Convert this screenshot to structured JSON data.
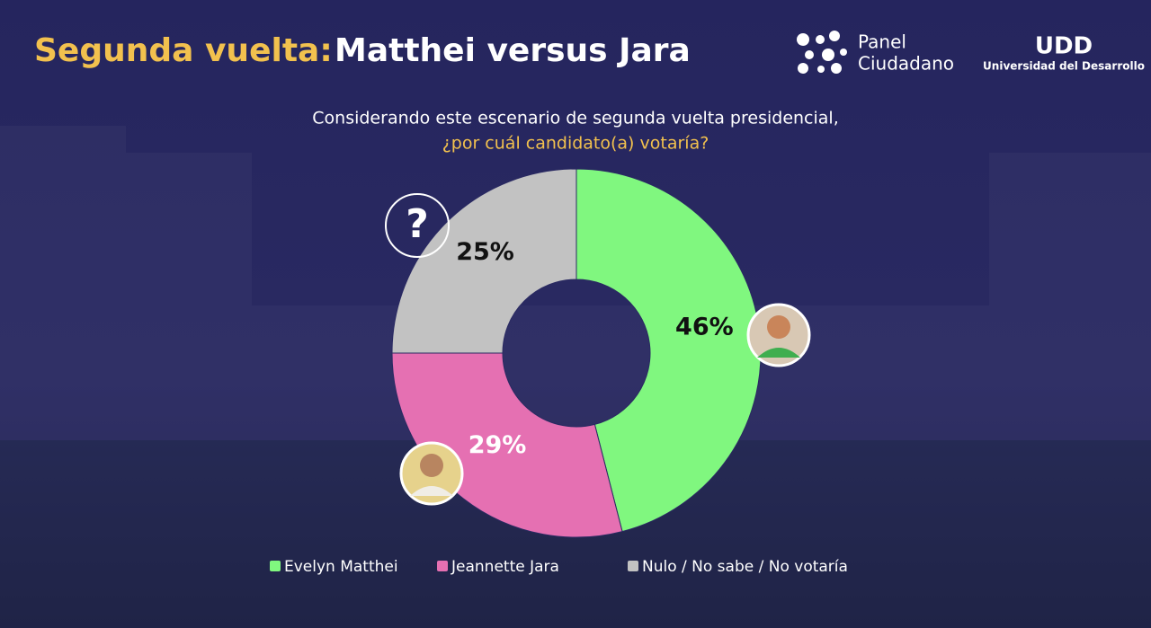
{
  "chart_data": {
    "type": "donut",
    "title_prefix": "Segunda vuelta:",
    "title": "Matthei versus Jara",
    "subtitle": [
      "Considerando este escenario de segunda vuelta presidencial,",
      "¿por cuál candidato(a) votaría?"
    ],
    "categories": [
      "Evelyn Matthei",
      "Jeannette Jara",
      "Nulo / No sabe / No votaría"
    ],
    "values": [
      46,
      29,
      25
    ],
    "value_labels": [
      "46%",
      "29%",
      "25%"
    ],
    "colors": [
      "#80f77f",
      "#e570b2",
      "#c2c2c2"
    ],
    "label_colors": [
      "#111111",
      "#ffffff",
      "#111111"
    ]
  },
  "logos": {
    "panel": [
      "Panel",
      "Ciudadano"
    ],
    "udd_mark": "UDD",
    "university": "Universidad del Desarrollo"
  }
}
